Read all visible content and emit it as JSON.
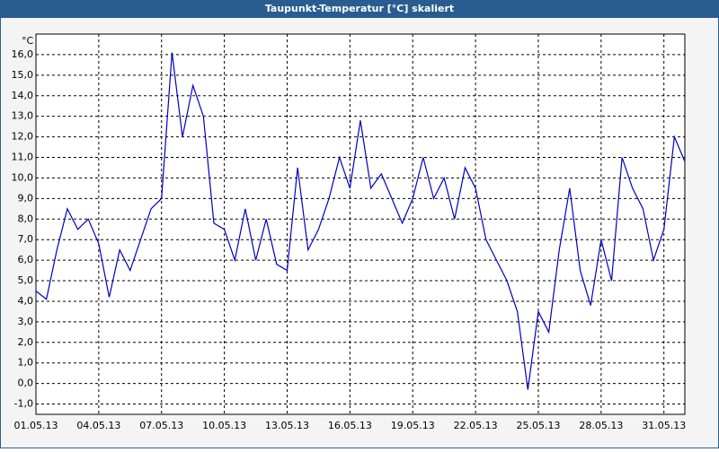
{
  "chart_data": {
    "type": "line",
    "title": "Taupunkt-Temperatur [°C] skaliert",
    "y_unit": "°C",
    "x": [
      0,
      0.5,
      1,
      1.5,
      2,
      2.5,
      3,
      3.5,
      4,
      4.5,
      5,
      5.5,
      6,
      6.5,
      7,
      7.5,
      8,
      8.5,
      9,
      9.5,
      10,
      10.5,
      11,
      11.5,
      12,
      12.5,
      13,
      13.5,
      14,
      14.5,
      15,
      15.5,
      16,
      16.5,
      17,
      17.5,
      18,
      18.5,
      19,
      19.5,
      20,
      20.5,
      21,
      21.5,
      22,
      22.5,
      23,
      23.5,
      24,
      24.5,
      25,
      25.5,
      26,
      26.5,
      27,
      27.5,
      28,
      28.5,
      29,
      29.5,
      30,
      30.5,
      31
    ],
    "series": [
      {
        "color": "#0000c0",
        "values": [
          4.5,
          4.1,
          6.5,
          8.5,
          7.5,
          8.0,
          6.8,
          4.2,
          6.5,
          5.5,
          7.0,
          8.5,
          9.0,
          16.1,
          12.0,
          14.5,
          13.0,
          7.8,
          7.5,
          6.0,
          8.5,
          6.0,
          8.0,
          5.8,
          5.5,
          10.5,
          6.5,
          7.5,
          9.0,
          11.0,
          9.5,
          12.8,
          9.5,
          10.2,
          9.0,
          7.8,
          9.0,
          11.0,
          9.0,
          10.0,
          8.0,
          10.5,
          9.5,
          7.0,
          6.0,
          5.0,
          3.5,
          -0.3,
          3.5,
          2.5,
          6.5,
          9.5,
          5.5,
          3.8,
          7.0,
          5.0,
          11.0,
          9.5,
          8.5,
          6.0,
          7.5,
          12.0,
          10.8
        ]
      }
    ],
    "xlim": [
      0,
      31
    ],
    "xticks": [
      {
        "value": 0,
        "label": "01.05.13"
      },
      {
        "value": 3,
        "label": "04.05.13"
      },
      {
        "value": 6,
        "label": "07.05.13"
      },
      {
        "value": 9,
        "label": "10.05.13"
      },
      {
        "value": 12,
        "label": "13.05.13"
      },
      {
        "value": 15,
        "label": "16.05.13"
      },
      {
        "value": 18,
        "label": "19.05.13"
      },
      {
        "value": 21,
        "label": "22.05.13"
      },
      {
        "value": 24,
        "label": "25.05.13"
      },
      {
        "value": 27,
        "label": "28.05.13"
      },
      {
        "value": 30,
        "label": "31.05.13"
      }
    ],
    "ylim": [
      -1.5,
      17
    ],
    "yticks": [
      {
        "value": -1,
        "label": "-1,0"
      },
      {
        "value": 0,
        "label": "0,0"
      },
      {
        "value": 1,
        "label": "1,0"
      },
      {
        "value": 2,
        "label": "2,0"
      },
      {
        "value": 3,
        "label": "3,0"
      },
      {
        "value": 4,
        "label": "4,0"
      },
      {
        "value": 5,
        "label": "5,0"
      },
      {
        "value": 6,
        "label": "6,0"
      },
      {
        "value": 7,
        "label": "7,0"
      },
      {
        "value": 8,
        "label": "8,0"
      },
      {
        "value": 9,
        "label": "9,0"
      },
      {
        "value": 10,
        "label": "10,0"
      },
      {
        "value": 11,
        "label": "11,0"
      },
      {
        "value": 12,
        "label": "12,0"
      },
      {
        "value": 13,
        "label": "13,0"
      },
      {
        "value": 14,
        "label": "14,0"
      },
      {
        "value": 15,
        "label": "15,0"
      },
      {
        "value": 16,
        "label": "16,0"
      }
    ],
    "grid": true
  }
}
